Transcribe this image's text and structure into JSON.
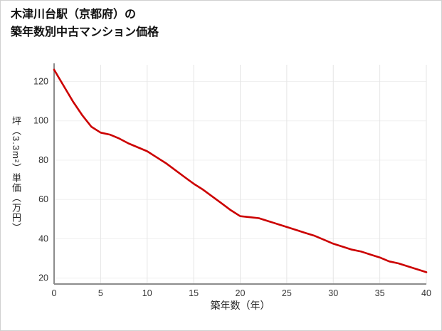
{
  "chart_data": {
    "type": "line",
    "title_lines": [
      "木津川台駅（京都府）の",
      "築年数別中古マンション価格"
    ],
    "xlabel": "築年数（年）",
    "ylabel": "坪（3.3m²）単価（万円）",
    "x": [
      0,
      1,
      2,
      3,
      4,
      5,
      6,
      7,
      8,
      9,
      10,
      11,
      12,
      13,
      14,
      15,
      16,
      17,
      18,
      19,
      20,
      21,
      22,
      23,
      24,
      25,
      26,
      27,
      28,
      29,
      30,
      31,
      32,
      33,
      34,
      35,
      36,
      37,
      38,
      39,
      40
    ],
    "values": [
      126,
      118,
      110,
      103,
      97,
      94,
      93,
      91,
      88.5,
      86.5,
      84.5,
      81.5,
      78.5,
      75,
      71.5,
      68,
      65,
      61.5,
      58,
      54.5,
      51.5,
      51,
      50.5,
      49,
      47.5,
      46,
      44.5,
      43,
      41.5,
      39.5,
      37.5,
      36,
      34.5,
      33.5,
      32,
      30.5,
      28.5,
      27.5,
      26,
      24.5,
      23
    ],
    "xticks": [
      0,
      5,
      10,
      15,
      20,
      25,
      30,
      35,
      40
    ],
    "yticks": [
      20,
      40,
      60,
      80,
      100,
      120
    ],
    "xlim": [
      0,
      40
    ],
    "ylim": [
      17,
      128.5
    ],
    "line_color": "#cc0000",
    "grid_color": "#e5e5e5",
    "axis_color": "#8c8c8c",
    "tick_color": "#333333",
    "legend_position": "none",
    "grid": "on"
  }
}
